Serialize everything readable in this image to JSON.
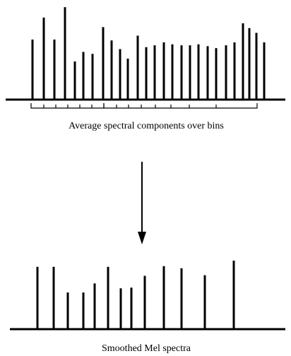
{
  "top_caption": "Average spectral components over bins",
  "bottom_caption": "Smoothed Mel spectra",
  "colors": {
    "ink": "#000000",
    "background": "#ffffff"
  },
  "spectral_components": {
    "relative_heights": [
      0.63,
      0.86,
      0.63,
      0.97,
      0.4,
      0.5,
      0.48,
      0.76,
      0.62,
      0.53,
      0.43,
      0.67,
      0.55,
      0.57,
      0.6,
      0.58,
      0.57,
      0.57,
      0.58,
      0.56,
      0.54,
      0.57,
      0.6,
      0.8,
      0.75,
      0.7,
      0.6
    ]
  },
  "smoothed_mel": {
    "relative_heights": [
      0.9,
      0.9,
      0.53,
      0.53,
      0.66,
      0.9,
      0.59,
      0.6,
      0.77,
      0.91,
      0.88,
      0.78,
      0.99
    ]
  }
}
